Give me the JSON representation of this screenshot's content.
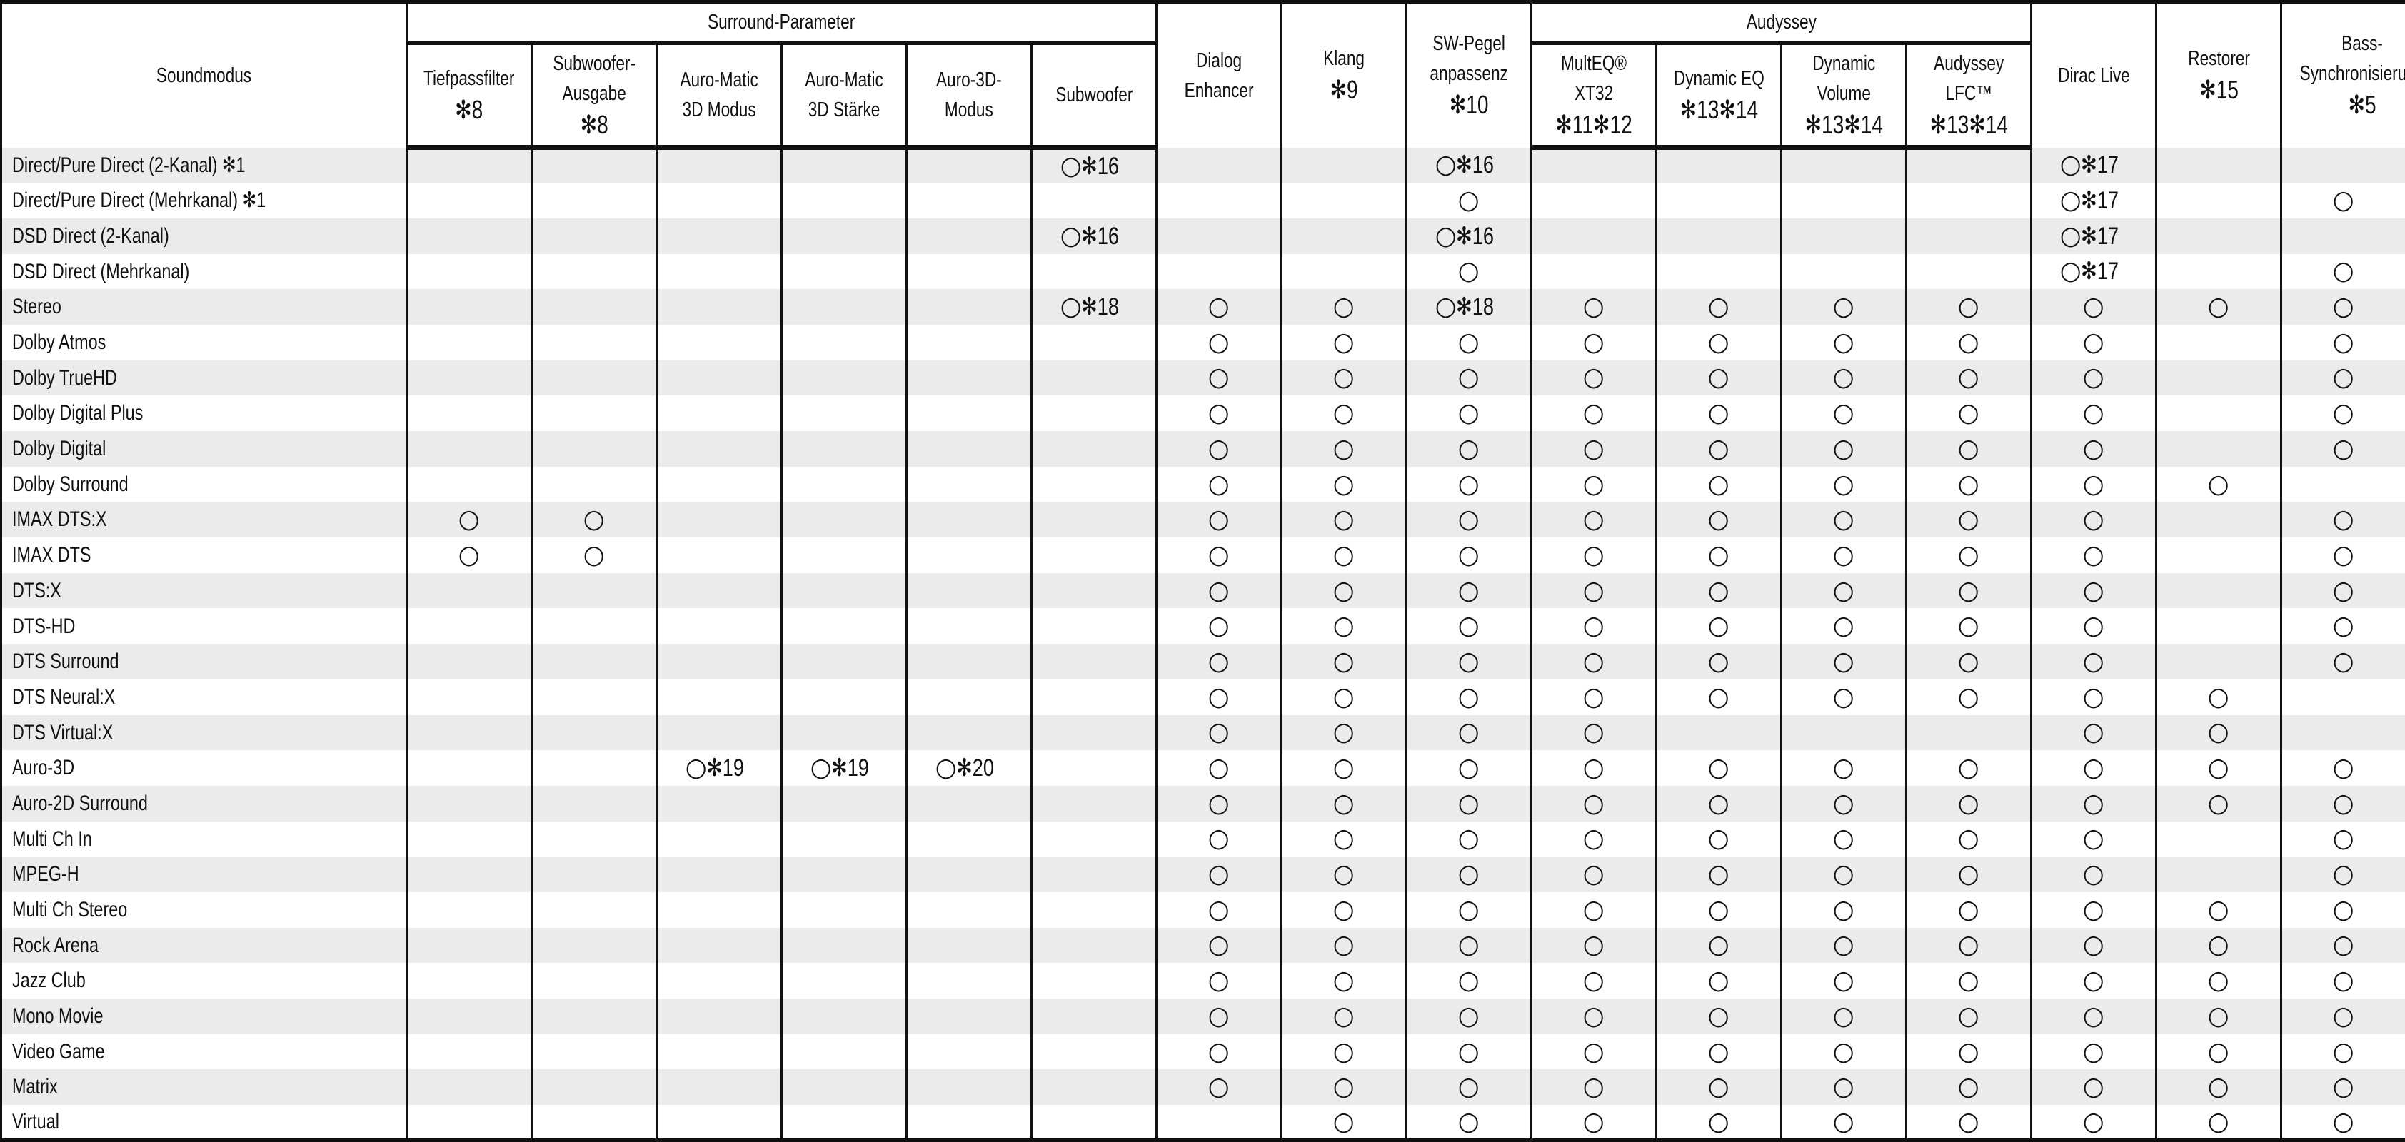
{
  "header": {
    "soundmodus": "Soundmodus",
    "surround_group": "Surround-Parameter",
    "audyssey_group": "Audyssey",
    "columns": [
      {
        "label": "Tiefpassfilter",
        "note": "✻8"
      },
      {
        "label": "Subwoofer-\nAusgabe",
        "note": "✻8"
      },
      {
        "label": "Auro-Matic\n3D Modus",
        "note": ""
      },
      {
        "label": "Auro-Matic\n3D Stärke",
        "note": ""
      },
      {
        "label": "Auro-3D-\nModus",
        "note": ""
      },
      {
        "label": "Subwoofer",
        "note": ""
      },
      {
        "label": "Dialog\nEnhancer",
        "note": ""
      },
      {
        "label": "Klang",
        "note": "✻9"
      },
      {
        "label": "SW-Pegel\nanpassenz",
        "note": "✻10"
      },
      {
        "label": "MultEQ® XT32",
        "note": "✻11✻12"
      },
      {
        "label": "Dynamic EQ",
        "note": "✻13✻14"
      },
      {
        "label": "Dynamic\nVolume",
        "note": "✻13✻14"
      },
      {
        "label": "Audyssey\nLFC™",
        "note": "✻13✻14"
      },
      {
        "label": "Dirac Live",
        "note": ""
      },
      {
        "label": "Restorer",
        "note": "✻15"
      },
      {
        "label": "Bass-\nSynchronisierung",
        "note": "✻5"
      }
    ]
  },
  "rows": [
    {
      "name": "Direct/Pure Direct (2-Kanal) ✻1",
      "cells": [
        null,
        null,
        null,
        null,
        null,
        {
          "mark": "○",
          "note": "✻16"
        },
        null,
        null,
        {
          "mark": "○",
          "note": "✻16"
        },
        null,
        null,
        null,
        null,
        {
          "mark": "○",
          "note": "✻17"
        },
        null,
        null
      ]
    },
    {
      "name": "Direct/Pure Direct (Mehrkanal) ✻1",
      "cells": [
        null,
        null,
        null,
        null,
        null,
        null,
        null,
        null,
        {
          "mark": "○"
        },
        null,
        null,
        null,
        null,
        {
          "mark": "○",
          "note": "✻17"
        },
        null,
        {
          "mark": "○"
        }
      ]
    },
    {
      "name": "DSD Direct (2-Kanal)",
      "cells": [
        null,
        null,
        null,
        null,
        null,
        {
          "mark": "○",
          "note": "✻16"
        },
        null,
        null,
        {
          "mark": "○",
          "note": "✻16"
        },
        null,
        null,
        null,
        null,
        {
          "mark": "○",
          "note": "✻17"
        },
        null,
        null
      ]
    },
    {
      "name": "DSD Direct (Mehrkanal)",
      "cells": [
        null,
        null,
        null,
        null,
        null,
        null,
        null,
        null,
        {
          "mark": "○"
        },
        null,
        null,
        null,
        null,
        {
          "mark": "○",
          "note": "✻17"
        },
        null,
        {
          "mark": "○"
        }
      ]
    },
    {
      "name": "Stereo",
      "cells": [
        null,
        null,
        null,
        null,
        null,
        {
          "mark": "○",
          "note": "✻18"
        },
        {
          "mark": "○"
        },
        {
          "mark": "○"
        },
        {
          "mark": "○",
          "note": "✻18"
        },
        {
          "mark": "○"
        },
        {
          "mark": "○"
        },
        {
          "mark": "○"
        },
        {
          "mark": "○"
        },
        {
          "mark": "○"
        },
        {
          "mark": "○"
        },
        {
          "mark": "○"
        }
      ]
    },
    {
      "name": "Dolby Atmos",
      "cells": [
        null,
        null,
        null,
        null,
        null,
        null,
        {
          "mark": "○"
        },
        {
          "mark": "○"
        },
        {
          "mark": "○"
        },
        {
          "mark": "○"
        },
        {
          "mark": "○"
        },
        {
          "mark": "○"
        },
        {
          "mark": "○"
        },
        {
          "mark": "○"
        },
        null,
        {
          "mark": "○"
        }
      ]
    },
    {
      "name": "Dolby TrueHD",
      "cells": [
        null,
        null,
        null,
        null,
        null,
        null,
        {
          "mark": "○"
        },
        {
          "mark": "○"
        },
        {
          "mark": "○"
        },
        {
          "mark": "○"
        },
        {
          "mark": "○"
        },
        {
          "mark": "○"
        },
        {
          "mark": "○"
        },
        {
          "mark": "○"
        },
        null,
        {
          "mark": "○"
        }
      ]
    },
    {
      "name": "Dolby Digital Plus",
      "cells": [
        null,
        null,
        null,
        null,
        null,
        null,
        {
          "mark": "○"
        },
        {
          "mark": "○"
        },
        {
          "mark": "○"
        },
        {
          "mark": "○"
        },
        {
          "mark": "○"
        },
        {
          "mark": "○"
        },
        {
          "mark": "○"
        },
        {
          "mark": "○"
        },
        null,
        {
          "mark": "○"
        }
      ]
    },
    {
      "name": "Dolby Digital",
      "cells": [
        null,
        null,
        null,
        null,
        null,
        null,
        {
          "mark": "○"
        },
        {
          "mark": "○"
        },
        {
          "mark": "○"
        },
        {
          "mark": "○"
        },
        {
          "mark": "○"
        },
        {
          "mark": "○"
        },
        {
          "mark": "○"
        },
        {
          "mark": "○"
        },
        null,
        {
          "mark": "○"
        }
      ]
    },
    {
      "name": "Dolby Surround",
      "cells": [
        null,
        null,
        null,
        null,
        null,
        null,
        {
          "mark": "○"
        },
        {
          "mark": "○"
        },
        {
          "mark": "○"
        },
        {
          "mark": "○"
        },
        {
          "mark": "○"
        },
        {
          "mark": "○"
        },
        {
          "mark": "○"
        },
        {
          "mark": "○"
        },
        {
          "mark": "○"
        },
        null
      ]
    },
    {
      "name": "IMAX DTS:X",
      "cells": [
        {
          "mark": "○"
        },
        {
          "mark": "○"
        },
        null,
        null,
        null,
        null,
        {
          "mark": "○"
        },
        {
          "mark": "○"
        },
        {
          "mark": "○"
        },
        {
          "mark": "○"
        },
        {
          "mark": "○"
        },
        {
          "mark": "○"
        },
        {
          "mark": "○"
        },
        {
          "mark": "○"
        },
        null,
        {
          "mark": "○"
        }
      ]
    },
    {
      "name": "IMAX DTS",
      "cells": [
        {
          "mark": "○"
        },
        {
          "mark": "○"
        },
        null,
        null,
        null,
        null,
        {
          "mark": "○"
        },
        {
          "mark": "○"
        },
        {
          "mark": "○"
        },
        {
          "mark": "○"
        },
        {
          "mark": "○"
        },
        {
          "mark": "○"
        },
        {
          "mark": "○"
        },
        {
          "mark": "○"
        },
        null,
        {
          "mark": "○"
        }
      ]
    },
    {
      "name": "DTS:X",
      "cells": [
        null,
        null,
        null,
        null,
        null,
        null,
        {
          "mark": "○"
        },
        {
          "mark": "○"
        },
        {
          "mark": "○"
        },
        {
          "mark": "○"
        },
        {
          "mark": "○"
        },
        {
          "mark": "○"
        },
        {
          "mark": "○"
        },
        {
          "mark": "○"
        },
        null,
        {
          "mark": "○"
        }
      ]
    },
    {
      "name": "DTS-HD",
      "cells": [
        null,
        null,
        null,
        null,
        null,
        null,
        {
          "mark": "○"
        },
        {
          "mark": "○"
        },
        {
          "mark": "○"
        },
        {
          "mark": "○"
        },
        {
          "mark": "○"
        },
        {
          "mark": "○"
        },
        {
          "mark": "○"
        },
        {
          "mark": "○"
        },
        null,
        {
          "mark": "○"
        }
      ]
    },
    {
      "name": "DTS Surround",
      "cells": [
        null,
        null,
        null,
        null,
        null,
        null,
        {
          "mark": "○"
        },
        {
          "mark": "○"
        },
        {
          "mark": "○"
        },
        {
          "mark": "○"
        },
        {
          "mark": "○"
        },
        {
          "mark": "○"
        },
        {
          "mark": "○"
        },
        {
          "mark": "○"
        },
        null,
        {
          "mark": "○"
        }
      ]
    },
    {
      "name": "DTS Neural:X",
      "cells": [
        null,
        null,
        null,
        null,
        null,
        null,
        {
          "mark": "○"
        },
        {
          "mark": "○"
        },
        {
          "mark": "○"
        },
        {
          "mark": "○"
        },
        {
          "mark": "○"
        },
        {
          "mark": "○"
        },
        {
          "mark": "○"
        },
        {
          "mark": "○"
        },
        {
          "mark": "○"
        },
        null
      ]
    },
    {
      "name": "DTS Virtual:X",
      "cells": [
        null,
        null,
        null,
        null,
        null,
        null,
        {
          "mark": "○"
        },
        {
          "mark": "○"
        },
        {
          "mark": "○"
        },
        {
          "mark": "○"
        },
        null,
        null,
        null,
        {
          "mark": "○"
        },
        {
          "mark": "○"
        },
        null
      ]
    },
    {
      "name": "Auro-3D",
      "cells": [
        null,
        null,
        {
          "mark": "○",
          "note": "✻19"
        },
        {
          "mark": "○",
          "note": "✻19"
        },
        {
          "mark": "○",
          "note": "✻20"
        },
        null,
        {
          "mark": "○"
        },
        {
          "mark": "○"
        },
        {
          "mark": "○"
        },
        {
          "mark": "○"
        },
        {
          "mark": "○"
        },
        {
          "mark": "○"
        },
        {
          "mark": "○"
        },
        {
          "mark": "○"
        },
        {
          "mark": "○"
        },
        {
          "mark": "○"
        }
      ]
    },
    {
      "name": "Auro-2D Surround",
      "cells": [
        null,
        null,
        null,
        null,
        null,
        null,
        {
          "mark": "○"
        },
        {
          "mark": "○"
        },
        {
          "mark": "○"
        },
        {
          "mark": "○"
        },
        {
          "mark": "○"
        },
        {
          "mark": "○"
        },
        {
          "mark": "○"
        },
        {
          "mark": "○"
        },
        {
          "mark": "○"
        },
        {
          "mark": "○"
        }
      ]
    },
    {
      "name": "Multi Ch In",
      "cells": [
        null,
        null,
        null,
        null,
        null,
        null,
        {
          "mark": "○"
        },
        {
          "mark": "○"
        },
        {
          "mark": "○"
        },
        {
          "mark": "○"
        },
        {
          "mark": "○"
        },
        {
          "mark": "○"
        },
        {
          "mark": "○"
        },
        {
          "mark": "○"
        },
        null,
        {
          "mark": "○"
        }
      ]
    },
    {
      "name": "MPEG-H",
      "cells": [
        null,
        null,
        null,
        null,
        null,
        null,
        {
          "mark": "○"
        },
        {
          "mark": "○"
        },
        {
          "mark": "○"
        },
        {
          "mark": "○"
        },
        {
          "mark": "○"
        },
        {
          "mark": "○"
        },
        {
          "mark": "○"
        },
        {
          "mark": "○"
        },
        null,
        {
          "mark": "○"
        }
      ]
    },
    {
      "name": "Multi Ch Stereo",
      "cells": [
        null,
        null,
        null,
        null,
        null,
        null,
        {
          "mark": "○"
        },
        {
          "mark": "○"
        },
        {
          "mark": "○"
        },
        {
          "mark": "○"
        },
        {
          "mark": "○"
        },
        {
          "mark": "○"
        },
        {
          "mark": "○"
        },
        {
          "mark": "○"
        },
        {
          "mark": "○"
        },
        {
          "mark": "○"
        }
      ]
    },
    {
      "name": "Rock Arena",
      "cells": [
        null,
        null,
        null,
        null,
        null,
        null,
        {
          "mark": "○"
        },
        {
          "mark": "○"
        },
        {
          "mark": "○"
        },
        {
          "mark": "○"
        },
        {
          "mark": "○"
        },
        {
          "mark": "○"
        },
        {
          "mark": "○"
        },
        {
          "mark": "○"
        },
        {
          "mark": "○"
        },
        {
          "mark": "○"
        }
      ]
    },
    {
      "name": "Jazz Club",
      "cells": [
        null,
        null,
        null,
        null,
        null,
        null,
        {
          "mark": "○"
        },
        {
          "mark": "○"
        },
        {
          "mark": "○"
        },
        {
          "mark": "○"
        },
        {
          "mark": "○"
        },
        {
          "mark": "○"
        },
        {
          "mark": "○"
        },
        {
          "mark": "○"
        },
        {
          "mark": "○"
        },
        {
          "mark": "○"
        }
      ]
    },
    {
      "name": "Mono Movie",
      "cells": [
        null,
        null,
        null,
        null,
        null,
        null,
        {
          "mark": "○"
        },
        {
          "mark": "○"
        },
        {
          "mark": "○"
        },
        {
          "mark": "○"
        },
        {
          "mark": "○"
        },
        {
          "mark": "○"
        },
        {
          "mark": "○"
        },
        {
          "mark": "○"
        },
        {
          "mark": "○"
        },
        {
          "mark": "○"
        }
      ]
    },
    {
      "name": "Video Game",
      "cells": [
        null,
        null,
        null,
        null,
        null,
        null,
        {
          "mark": "○"
        },
        {
          "mark": "○"
        },
        {
          "mark": "○"
        },
        {
          "mark": "○"
        },
        {
          "mark": "○"
        },
        {
          "mark": "○"
        },
        {
          "mark": "○"
        },
        {
          "mark": "○"
        },
        {
          "mark": "○"
        },
        {
          "mark": "○"
        }
      ]
    },
    {
      "name": "Matrix",
      "cells": [
        null,
        null,
        null,
        null,
        null,
        null,
        {
          "mark": "○"
        },
        {
          "mark": "○"
        },
        {
          "mark": "○"
        },
        {
          "mark": "○"
        },
        {
          "mark": "○"
        },
        {
          "mark": "○"
        },
        {
          "mark": "○"
        },
        {
          "mark": "○"
        },
        {
          "mark": "○"
        },
        {
          "mark": "○"
        }
      ]
    },
    {
      "name": "Virtual",
      "cells": [
        null,
        null,
        null,
        null,
        null,
        null,
        null,
        {
          "mark": "○"
        },
        {
          "mark": "○"
        },
        {
          "mark": "○"
        },
        {
          "mark": "○"
        },
        {
          "mark": "○"
        },
        {
          "mark": "○"
        },
        {
          "mark": "○"
        },
        {
          "mark": "○"
        },
        {
          "mark": "○"
        }
      ]
    }
  ],
  "colors": {
    "stripe": "#ebebeb",
    "lines": "#111111"
  }
}
